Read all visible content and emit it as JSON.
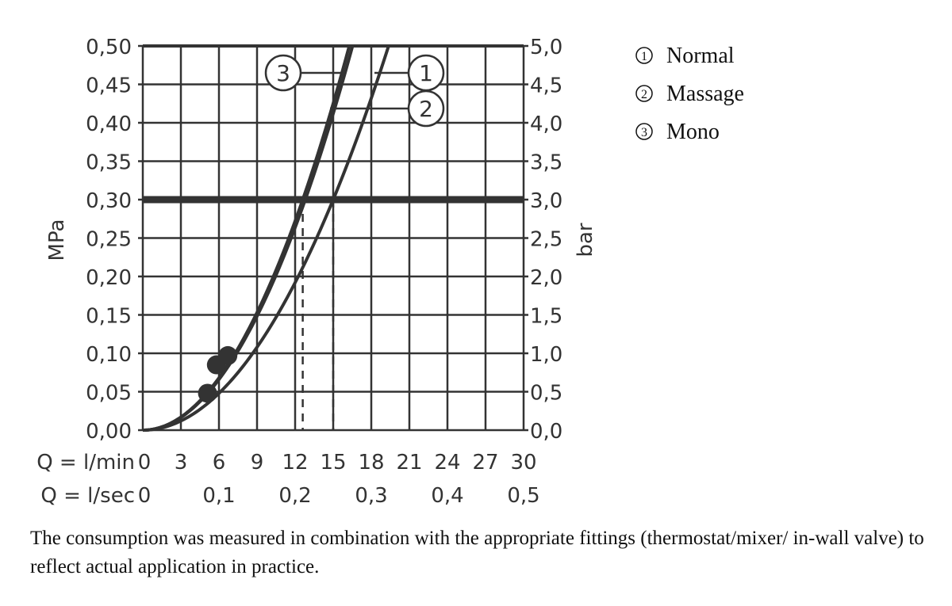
{
  "chart_data": {
    "type": "line",
    "ylabel_left": "MPa",
    "ylabel_right": "bar",
    "xlabel_rows": [
      "Q = l/min",
      "Q = l/sec"
    ],
    "x_ticks_lmin": [
      "0",
      "3",
      "6",
      "9",
      "12",
      "15",
      "18",
      "21",
      "24",
      "27",
      "30"
    ],
    "x_ticks_lsec": [
      "0",
      "0,1",
      "0,2",
      "0,3",
      "0,4",
      "0,5"
    ],
    "y_ticks_left": [
      "0,00",
      "0,05",
      "0,10",
      "0,15",
      "0,20",
      "0,25",
      "0,30",
      "0,35",
      "0,40",
      "0,45",
      "0,50"
    ],
    "y_ticks_right": [
      "0,0",
      "0,5",
      "1,0",
      "1,5",
      "2,0",
      "2,5",
      "3,0",
      "3,5",
      "4,0",
      "4,5",
      "5,0"
    ],
    "xlim": [
      0,
      30
    ],
    "ylim": [
      0,
      0.5
    ],
    "grid": true,
    "reference_line_mpa": 0.3,
    "reference_flows_lmin": [
      12.6,
      15
    ],
    "series": [
      {
        "name": "Normal",
        "marker": "1",
        "points": [
          [
            0,
            0
          ],
          [
            3,
            0.012
          ],
          [
            6,
            0.048
          ],
          [
            9,
            0.108
          ],
          [
            12,
            0.192
          ],
          [
            15,
            0.3
          ],
          [
            18,
            0.432
          ],
          [
            19.4,
            0.5
          ]
        ]
      },
      {
        "name": "Massage",
        "marker": "2",
        "points": [
          [
            0,
            0
          ],
          [
            3,
            0.017
          ],
          [
            6,
            0.068
          ],
          [
            9,
            0.153
          ],
          [
            12,
            0.272
          ],
          [
            12.6,
            0.3
          ],
          [
            15,
            0.425
          ],
          [
            16.3,
            0.5
          ]
        ]
      },
      {
        "name": "Mono",
        "marker": "3",
        "points": [
          [
            0,
            0
          ],
          [
            3,
            0.016
          ],
          [
            6,
            0.066
          ],
          [
            9,
            0.148
          ],
          [
            12,
            0.264
          ],
          [
            12.8,
            0.3
          ],
          [
            15,
            0.412
          ],
          [
            16.6,
            0.5
          ]
        ]
      }
    ],
    "operating_points": [
      [
        5.1,
        0.048
      ],
      [
        5.8,
        0.085
      ],
      [
        6.7,
        0.097
      ]
    ],
    "legend": [
      {
        "marker": "1",
        "label": "Normal"
      },
      {
        "marker": "2",
        "label": "Massage"
      },
      {
        "marker": "3",
        "label": "Mono"
      }
    ],
    "legend_position": "top-right"
  },
  "caption": "The consumption was measured in combination with the appropriate fittings (thermostat/mixer/ in-wall valve) to reflect actual application in practice."
}
